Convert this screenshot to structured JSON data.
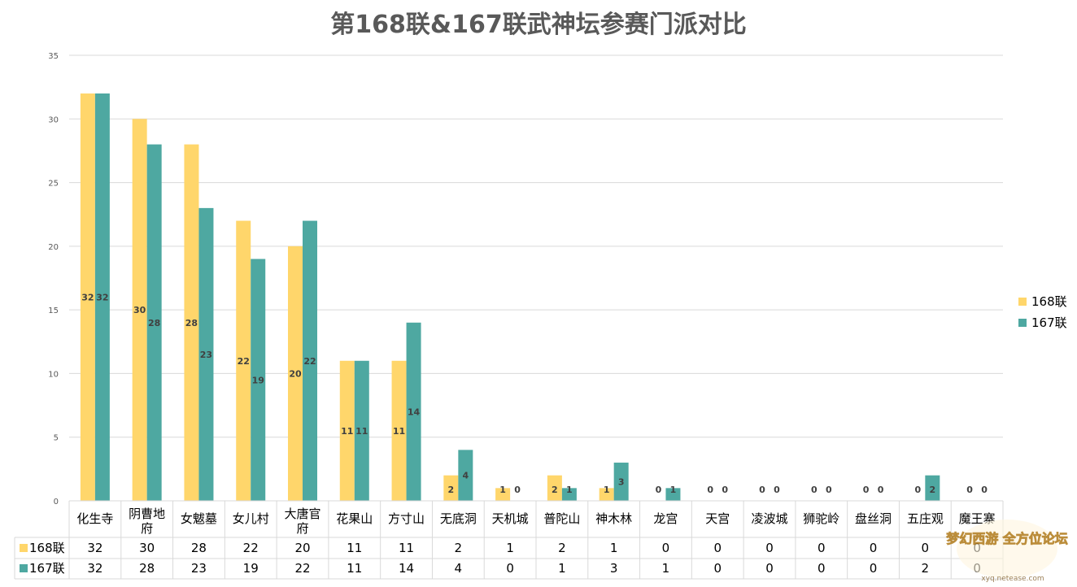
{
  "chart_data": {
    "type": "bar",
    "title": "第168联&167联武神坛参赛门派对比",
    "categories": [
      "化生寺",
      "阴曹地府",
      "女魃墓",
      "女儿村",
      "大唐官府",
      "花果山",
      "方寸山",
      "无底洞",
      "天机城",
      "普陀山",
      "神木林",
      "龙宫",
      "天宫",
      "凌波城",
      "狮驼岭",
      "盘丝洞",
      "五庄观",
      "魔王寨"
    ],
    "series": [
      {
        "name": "168联",
        "color": "#FFD66B",
        "values": [
          32,
          30,
          28,
          22,
          20,
          11,
          11,
          2,
          1,
          2,
          1,
          0,
          0,
          0,
          0,
          0,
          0,
          0
        ]
      },
      {
        "name": "167联",
        "color": "#4EA8A1",
        "values": [
          32,
          28,
          23,
          19,
          22,
          11,
          14,
          4,
          0,
          1,
          3,
          1,
          0,
          0,
          0,
          0,
          2,
          0
        ]
      }
    ],
    "ylim": [
      0,
      35
    ],
    "yticks": [
      0,
      5,
      10,
      15,
      20,
      25,
      30,
      35
    ],
    "grid": true,
    "legend": "right",
    "data_table": true
  },
  "watermark": {
    "text": "梦幻西游 全方位论坛",
    "url_text": "xyq.netease.com"
  }
}
